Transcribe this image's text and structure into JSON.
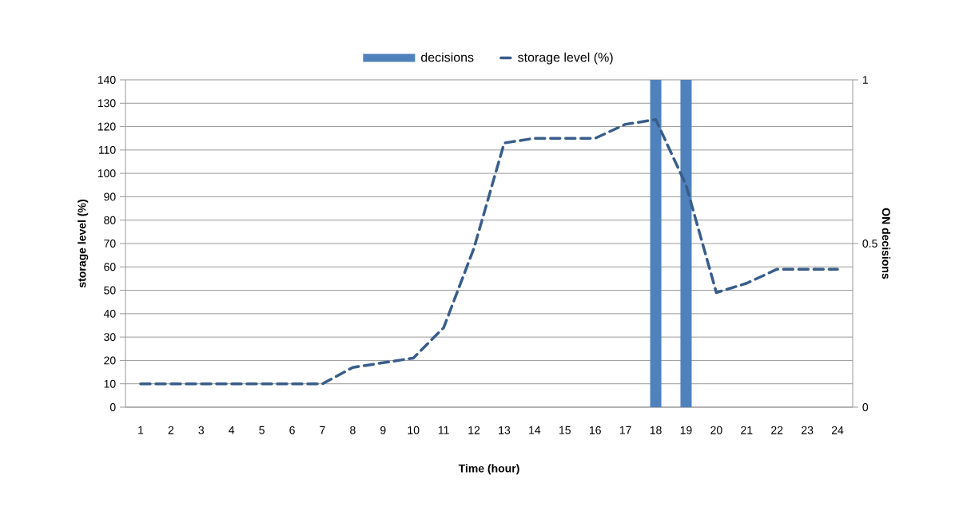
{
  "chart_data": {
    "type": "bar",
    "categories": [
      "1",
      "2",
      "3",
      "4",
      "5",
      "6",
      "7",
      "8",
      "9",
      "10",
      "11",
      "12",
      "13",
      "14",
      "15",
      "16",
      "17",
      "18",
      "19",
      "20",
      "21",
      "22",
      "23",
      "24"
    ],
    "xlabel": "Time (hour)",
    "ylabel": "storage level (%)",
    "y2label": "ON  decisions",
    "ylim": [
      0,
      140
    ],
    "yticks": [
      0,
      10,
      20,
      30,
      40,
      50,
      60,
      70,
      80,
      90,
      100,
      110,
      120,
      130,
      140
    ],
    "y2lim": [
      0,
      1
    ],
    "y2ticks": [
      0,
      0.5,
      1
    ],
    "grid": "y",
    "legend": "top",
    "series": [
      {
        "name": "decisions",
        "axis": "y2",
        "color": "#4f81bd",
        "values": [
          0,
          0,
          0,
          0,
          0,
          0,
          0,
          0,
          0,
          0,
          0,
          0,
          0,
          0,
          0,
          0,
          0,
          1,
          1,
          0,
          0,
          0,
          0,
          0
        ]
      },
      {
        "name": "storage level (%)",
        "type": "line",
        "color": "#385d8a",
        "line_style": "dashed",
        "marker": "none",
        "values": [
          10,
          10,
          10,
          10,
          10,
          10,
          10,
          17,
          19,
          21,
          34,
          68,
          113,
          115,
          115,
          115,
          121,
          123,
          95,
          49,
          53,
          59,
          59,
          59
        ]
      }
    ]
  }
}
